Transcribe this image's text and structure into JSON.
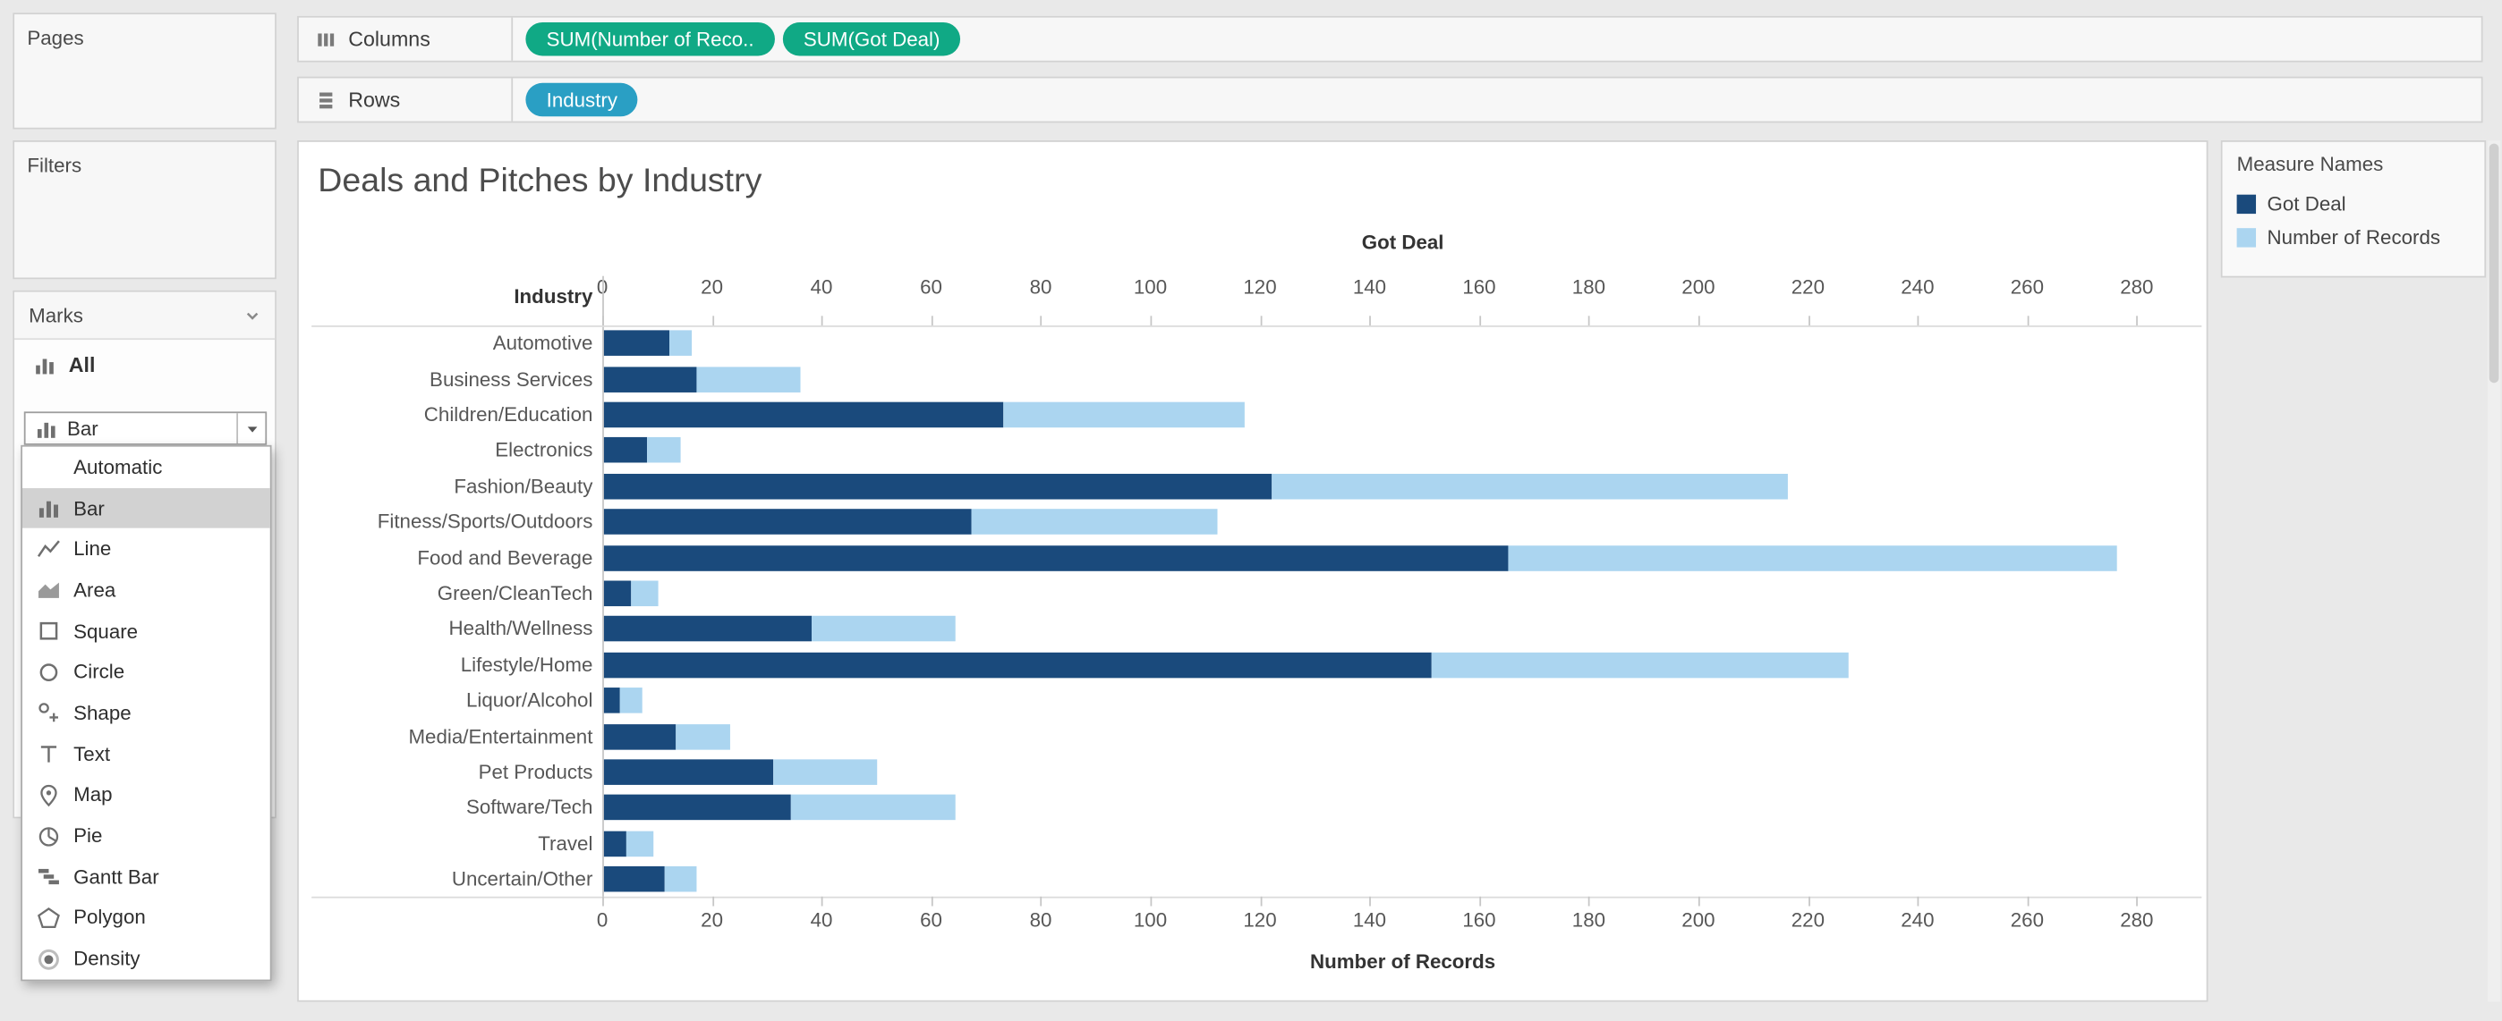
{
  "cards": {
    "pages": "Pages",
    "filters": "Filters",
    "marks": "Marks",
    "all": "All"
  },
  "shelves": {
    "columns": {
      "label": "Columns",
      "pills": [
        {
          "text": "SUM(Number of Reco..",
          "type": "measure"
        },
        {
          "text": "SUM(Got Deal)",
          "type": "measure"
        }
      ]
    },
    "rows": {
      "label": "Rows",
      "pills": [
        {
          "text": "Industry",
          "type": "dimension"
        }
      ]
    }
  },
  "marks_dropdown": {
    "selected": "Bar",
    "items": [
      {
        "label": "Automatic",
        "icon": null
      },
      {
        "label": "Bar",
        "icon": "bar-chart-icon",
        "selected": true
      },
      {
        "label": "Line",
        "icon": "line-icon"
      },
      {
        "label": "Area",
        "icon": "area-icon"
      },
      {
        "label": "Square",
        "icon": "square-icon"
      },
      {
        "label": "Circle",
        "icon": "circle-icon"
      },
      {
        "label": "Shape",
        "icon": "shape-icon"
      },
      {
        "label": "Text",
        "icon": "text-icon"
      },
      {
        "label": "Map",
        "icon": "map-icon"
      },
      {
        "label": "Pie",
        "icon": "pie-icon"
      },
      {
        "label": "Gantt Bar",
        "icon": "gantt-bar-icon"
      },
      {
        "label": "Polygon",
        "icon": "polygon-icon"
      },
      {
        "label": "Density",
        "icon": "density-icon"
      }
    ]
  },
  "chart_data": {
    "type": "bar",
    "orientation": "horizontal",
    "stacked": true,
    "title": "Deals and Pitches by Industry",
    "top_axis_label": "Got Deal",
    "bottom_axis_label": "Number of Records",
    "row_header": "Industry",
    "xlim": [
      0,
      280
    ],
    "tick_step": 20,
    "ticks": [
      0,
      20,
      40,
      60,
      80,
      100,
      120,
      140,
      160,
      180,
      200,
      220,
      240,
      260,
      280
    ],
    "grid": false,
    "legend_position": "right",
    "categories": [
      "Automotive",
      "Business Services",
      "Children/Education",
      "Electronics",
      "Fashion/Beauty",
      "Fitness/Sports/Outdoors",
      "Food and Beverage",
      "Green/CleanTech",
      "Health/Wellness",
      "Lifestyle/Home",
      "Liquor/Alcohol",
      "Media/Entertainment",
      "Pet Products",
      "Software/Tech",
      "Travel",
      "Uncertain/Other"
    ],
    "series": [
      {
        "name": "Got Deal",
        "color": "#1A4A7C",
        "values": [
          12,
          17,
          73,
          8,
          122,
          67,
          165,
          5,
          38,
          151,
          3,
          13,
          31,
          34,
          4,
          11
        ]
      },
      {
        "name": "Number of Records",
        "color": "#ABD5F0",
        "values": [
          4,
          19,
          44,
          6,
          94,
          45,
          111,
          5,
          26,
          76,
          4,
          10,
          19,
          30,
          5,
          6
        ]
      }
    ],
    "stack_totals": [
      16,
      36,
      117,
      14,
      216,
      112,
      276,
      10,
      64,
      227,
      7,
      23,
      50,
      64,
      9,
      17
    ]
  },
  "legend": {
    "title": "Measure Names",
    "items": [
      {
        "label": "Got Deal",
        "color": "#1A4A7C"
      },
      {
        "label": "Number of Records",
        "color": "#ABD5F0"
      }
    ]
  },
  "colors": {
    "measure_pill": "#10A985",
    "dimension_pill": "#2A9FC4",
    "got_deal": "#1A4A7C",
    "number_of_records": "#ABD5F0",
    "background": "#E9E9E9"
  }
}
